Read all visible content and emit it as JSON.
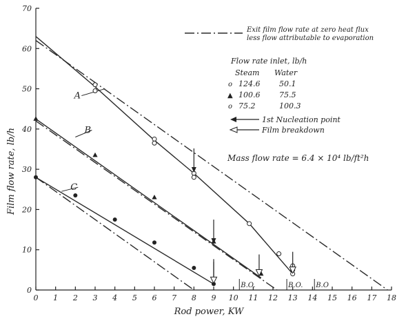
{
  "chart_data": {
    "type": "line",
    "xlabel": "Rod power, KW",
    "ylabel": "Film flow rate, lb/h",
    "xlim": [
      0,
      18
    ],
    "ylim": [
      0,
      70
    ],
    "x_ticks": [
      0,
      1,
      2,
      3,
      4,
      5,
      6,
      7,
      8,
      9,
      10,
      11,
      12,
      13,
      14,
      15,
      16,
      17,
      18
    ],
    "y_ticks": [
      0,
      10,
      20,
      30,
      40,
      50,
      60,
      70
    ],
    "grid": false,
    "legend_dashdot": {
      "line1": "Exit film flow rate at zero heat flux",
      "line2": "less flow attributable to evaporation"
    },
    "legend_flow": {
      "title": "Flow rate inlet, lb/h",
      "col_steam": "Steam",
      "col_water": "Water",
      "rows": [
        {
          "marker": "open-circle",
          "symbol": "o",
          "steam": "124.6",
          "water": "50.1"
        },
        {
          "marker": "filled-triangle",
          "symbol": "▲",
          "steam": "100.6",
          "water": "75.5"
        },
        {
          "marker": "open-circle",
          "symbol": "o",
          "steam": "75.2",
          "water": "100.3"
        }
      ]
    },
    "legend_arrows": {
      "nucleation": "1st Nucleation point",
      "breakdown": "Film breakdown"
    },
    "annotation": "Mass flow rate = 6.4 × 10⁴ lb/ft²h",
    "bo_label": "B.O.",
    "bo_labels": [
      {
        "x": 10.3,
        "text": "B.O."
      },
      {
        "x": 12.7,
        "text": "B.O."
      },
      {
        "x": 14.1,
        "text": "B.O"
      }
    ],
    "series": [
      {
        "name": "A",
        "marker": "open-circle",
        "x": [
          3.0,
          3.0,
          6.0,
          6.0,
          8.0,
          8.0,
          10.8,
          12.3,
          13.0,
          13.0,
          13.0
        ],
        "y": [
          51.0,
          49.5,
          37.5,
          36.5,
          29.0,
          28.0,
          16.5,
          9.0,
          6.0,
          5.0,
          4.0
        ],
        "fit": [
          [
            0,
            63
          ],
          [
            3.0,
            50.5
          ],
          [
            6.0,
            37.2
          ],
          [
            8.0,
            29.0
          ],
          [
            10.8,
            16.5
          ],
          [
            13.0,
            4.0
          ]
        ],
        "zero_flux": [
          [
            0,
            62
          ],
          [
            17.8,
            0
          ]
        ],
        "nucleation_x": 8.0,
        "breakdown_x": 13.0
      },
      {
        "name": "B",
        "marker": "filled-triangle",
        "x": [
          0,
          3.0,
          6.0,
          9.0,
          11.4
        ],
        "y": [
          42.5,
          33.5,
          23.0,
          12.0,
          4.0
        ],
        "fit": [
          [
            0,
            42.5
          ],
          [
            11.4,
            3.0
          ]
        ],
        "zero_flux": [
          [
            0,
            42
          ],
          [
            12.2,
            0
          ]
        ],
        "nucleation_x": 9.0,
        "breakdown_x": 11.3
      },
      {
        "name": "C",
        "marker": "filled-circle",
        "x": [
          0,
          2.0,
          4.0,
          6.0,
          8.0,
          9.0
        ],
        "y": [
          28.0,
          23.5,
          17.5,
          11.8,
          5.5,
          1.5
        ],
        "fit": [
          [
            0,
            28
          ],
          [
            9.0,
            1.5
          ]
        ],
        "zero_flux": [
          [
            0,
            28
          ],
          [
            8.0,
            0
          ]
        ],
        "nucleation_x": 9.0,
        "breakdown_x": 9.0
      }
    ]
  }
}
